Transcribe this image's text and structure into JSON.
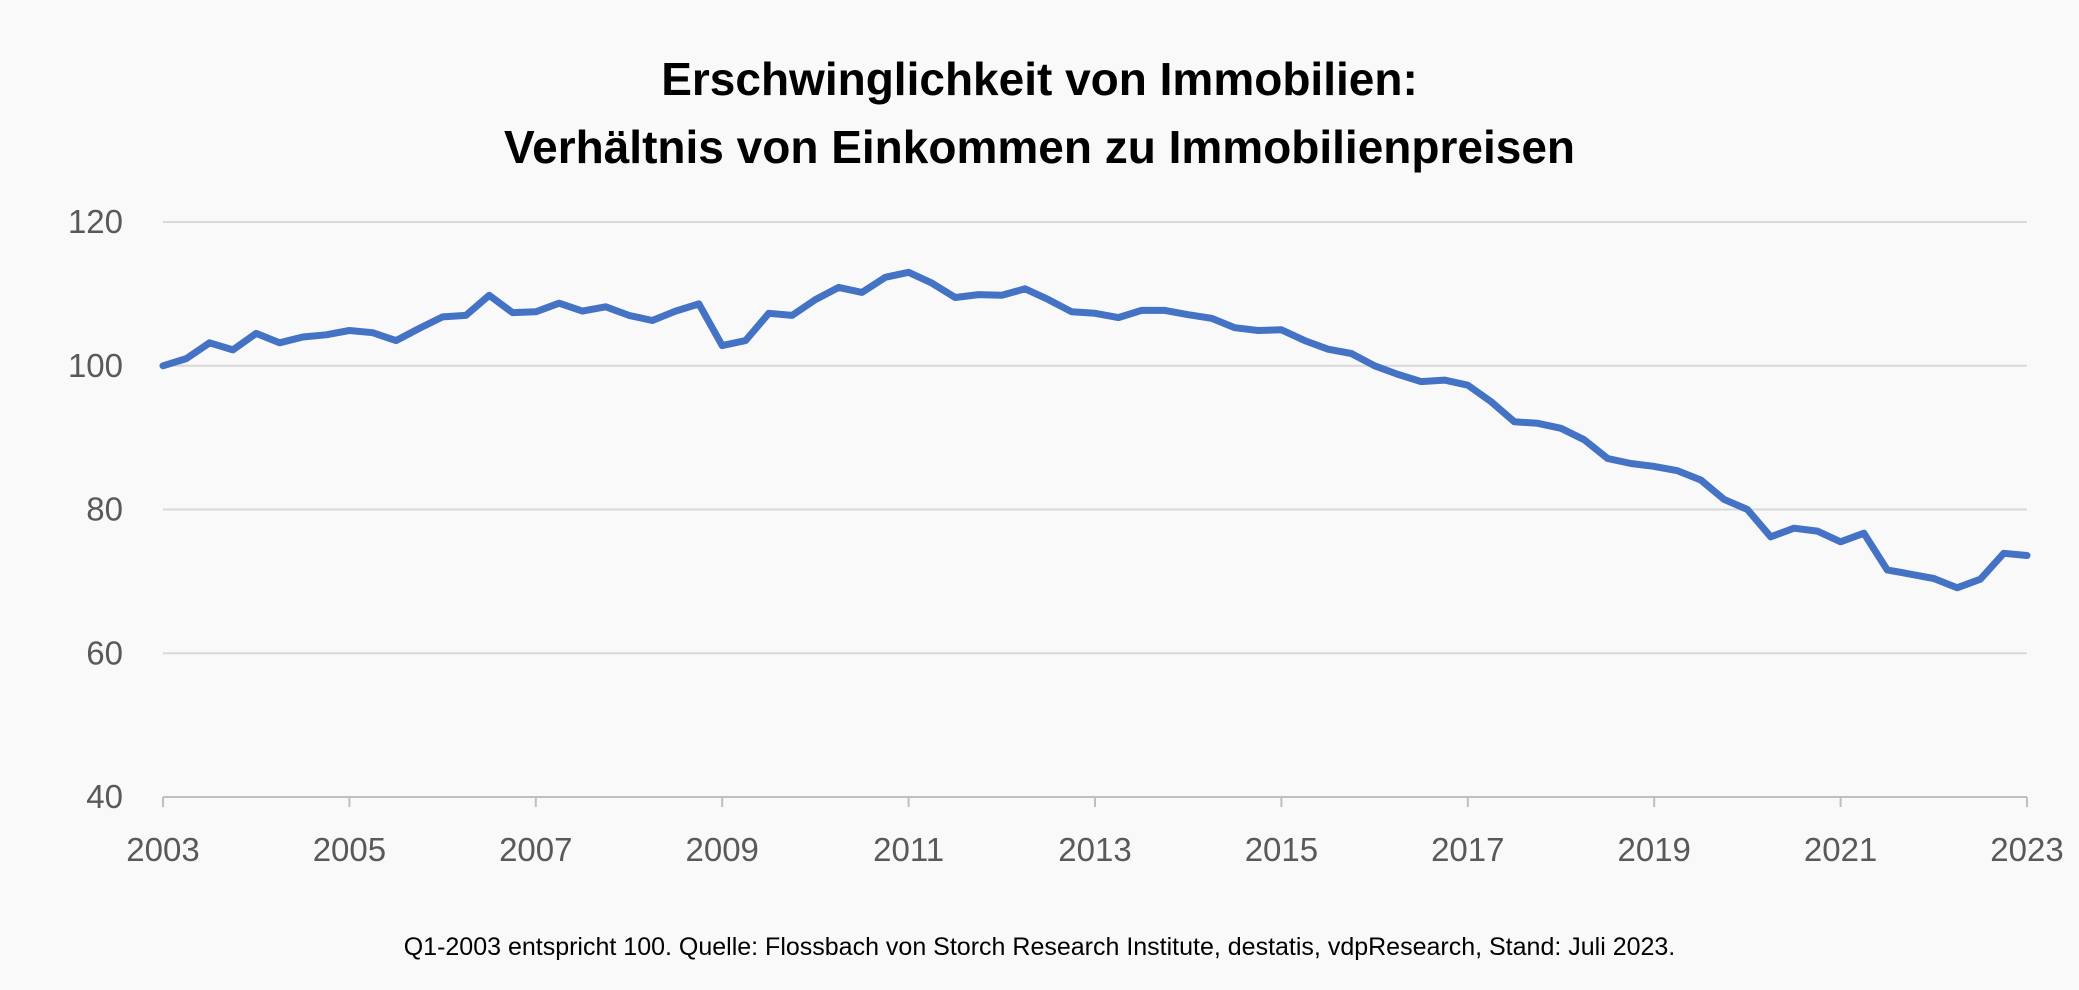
{
  "chart_data": {
    "type": "line",
    "title": [
      "Erschwinglichkeit von Immobilien:",
      "Verhältnis von Einkommen zu Immobilienpreisen"
    ],
    "xlabel": "",
    "ylabel": "",
    "xlim": [
      2003,
      2023
    ],
    "ylim": [
      40,
      120
    ],
    "yticks": [
      40,
      60,
      80,
      100,
      120
    ],
    "xticks": [
      2003,
      2005,
      2007,
      2009,
      2011,
      2013,
      2015,
      2017,
      2019,
      2021,
      2023
    ],
    "grid": true,
    "legend": "none",
    "line_color": "#4472c4",
    "series": [
      {
        "x": [
          2003.0,
          2003.25,
          2003.5,
          2003.75,
          2004.0,
          2004.25,
          2004.5,
          2004.75,
          2005.0,
          2005.25,
          2005.5,
          2005.75,
          2006.0,
          2006.25,
          2006.5,
          2006.75,
          2007.0,
          2007.25,
          2007.5,
          2007.75,
          2008.0,
          2008.25,
          2008.5,
          2008.75,
          2009.0,
          2009.25,
          2009.5,
          2009.75,
          2010.0,
          2010.25,
          2010.5,
          2010.75,
          2011.0,
          2011.25,
          2011.5,
          2011.75,
          2012.0,
          2012.25,
          2012.5,
          2012.75,
          2013.0,
          2013.25,
          2013.5,
          2013.75,
          2014.0,
          2014.25,
          2014.5,
          2014.75,
          2015.0,
          2015.25,
          2015.5,
          2015.75,
          2016.0,
          2016.25,
          2016.5,
          2016.75,
          2017.0,
          2017.25,
          2017.5,
          2017.75,
          2018.0,
          2018.25,
          2018.5,
          2018.75,
          2019.0,
          2019.25,
          2019.5,
          2019.75,
          2020.0,
          2020.25,
          2020.5,
          2020.75,
          2021.0,
          2021.25,
          2021.5,
          2021.75,
          2022.0,
          2022.25,
          2022.5,
          2022.75,
          2023.0
        ],
        "values": [
          100.0,
          101.0,
          103.2,
          102.2,
          104.5,
          103.2,
          104.0,
          104.3,
          104.9,
          104.6,
          103.5,
          105.2,
          106.8,
          107.0,
          109.8,
          107.4,
          107.5,
          108.7,
          107.6,
          108.2,
          107.0,
          106.3,
          107.6,
          108.6,
          102.8,
          103.5,
          107.3,
          107.0,
          109.2,
          110.9,
          110.2,
          112.3,
          113.0,
          111.5,
          109.5,
          109.9,
          109.8,
          110.7,
          109.2,
          107.5,
          107.3,
          106.7,
          107.7,
          107.7,
          107.1,
          106.6,
          105.3,
          104.9,
          105.0,
          103.5,
          102.3,
          101.7,
          100.0,
          98.8,
          97.8,
          98.0,
          97.3,
          95.0,
          92.2,
          92.0,
          91.3,
          89.7,
          87.1,
          86.4,
          86.0,
          85.4,
          84.1,
          81.4,
          80.0,
          76.2,
          77.4,
          77.0,
          75.5,
          76.7,
          71.6,
          71.0,
          70.4,
          69.1,
          70.3,
          73.9,
          73.6
        ]
      }
    ]
  },
  "footnote": "Q1-2003 entspricht 100. Quelle: Flossbach von Storch Research Institute, destatis, vdpResearch, Stand: Juli 2023."
}
